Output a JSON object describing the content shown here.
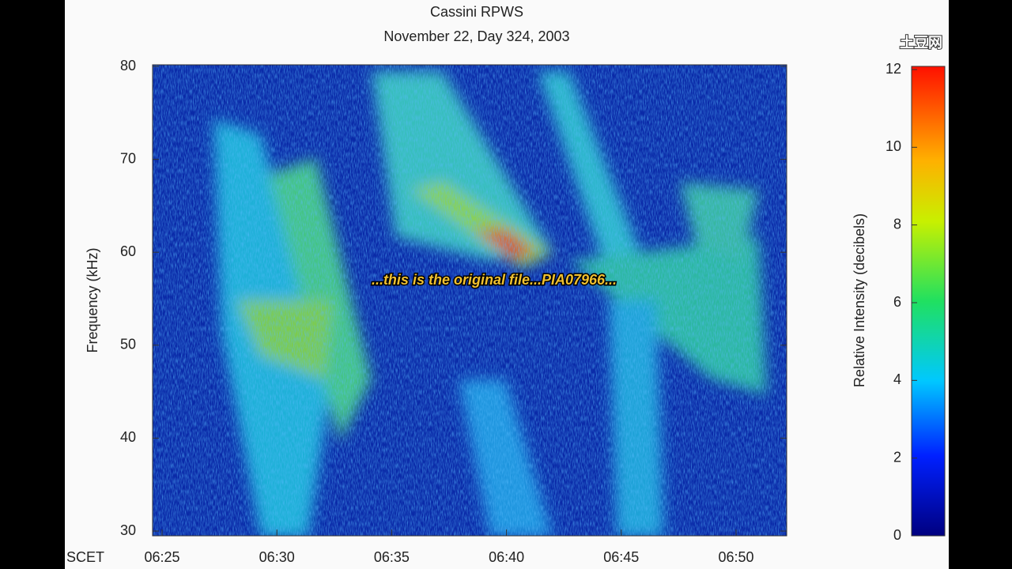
{
  "chart_data": {
    "type": "spectrogram",
    "title": "Cassini RPWS",
    "subtitle": "November 22, Day 324, 2003",
    "y_label": "Frequency (kHz)",
    "x_label": "SCET",
    "ylim": [
      30,
      80
    ],
    "yticks": [
      30,
      40,
      50,
      60,
      70,
      80
    ],
    "xticks": [
      "06:25",
      "06:30",
      "06:35",
      "06:40",
      "06:45",
      "06:50"
    ],
    "colorbar_label": "Relative Intensity (decibels)",
    "colorbar_lim": [
      0,
      12
    ],
    "colorbar_ticks": [
      0,
      2,
      4,
      6,
      8,
      10,
      12
    ]
  },
  "overlay": {
    "caption": "...this is the original file...PIA07966...",
    "watermark": "土豆网"
  }
}
